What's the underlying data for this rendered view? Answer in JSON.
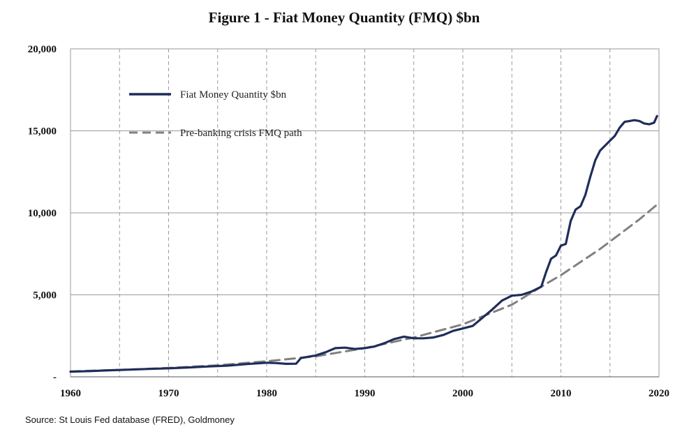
{
  "chart_data": {
    "type": "line",
    "title": "Figure 1 - Fiat Money Quantity (FMQ)  $bn",
    "xlabel": "",
    "ylabel": "",
    "xlim": [
      1960,
      2020
    ],
    "ylim": [
      0,
      20000
    ],
    "x_ticks": [
      1960,
      1970,
      1980,
      1990,
      2000,
      2010,
      2020
    ],
    "x_tick_labels": [
      "1960",
      "1970",
      "1980",
      "1990",
      "2000",
      "2010",
      "2020"
    ],
    "y_ticks": [
      0,
      5000,
      10000,
      15000,
      20000
    ],
    "y_tick_labels": [
      "-",
      "5,000",
      "10,000",
      "15,000",
      "20,000"
    ],
    "x_minor_gridlines": [
      1965,
      1975,
      1985,
      1995,
      2005,
      2015
    ],
    "grid": "horizontal solid at y ticks; vertical dashed every 5 years",
    "legend_position": "upper-left",
    "series": [
      {
        "name": "Fiat Money Quantity $bn",
        "style": "solid",
        "color": "#1f2d5a",
        "points": [
          [
            1960,
            310
          ],
          [
            1962,
            350
          ],
          [
            1964,
            400
          ],
          [
            1966,
            440
          ],
          [
            1968,
            480
          ],
          [
            1970,
            520
          ],
          [
            1972,
            570
          ],
          [
            1974,
            630
          ],
          [
            1976,
            680
          ],
          [
            1978,
            780
          ],
          [
            1980,
            860
          ],
          [
            1981,
            840
          ],
          [
            1982,
            790
          ],
          [
            1983,
            800
          ],
          [
            1983.5,
            1150
          ],
          [
            1984,
            1200
          ],
          [
            1985,
            1300
          ],
          [
            1986,
            1500
          ],
          [
            1987,
            1750
          ],
          [
            1988,
            1780
          ],
          [
            1989,
            1700
          ],
          [
            1990,
            1750
          ],
          [
            1991,
            1850
          ],
          [
            1992,
            2050
          ],
          [
            1993,
            2300
          ],
          [
            1994,
            2450
          ],
          [
            1995,
            2350
          ],
          [
            1996,
            2350
          ],
          [
            1997,
            2400
          ],
          [
            1998,
            2550
          ],
          [
            1999,
            2800
          ],
          [
            2000,
            2950
          ],
          [
            2001,
            3100
          ],
          [
            2002,
            3600
          ],
          [
            2003,
            4100
          ],
          [
            2004,
            4650
          ],
          [
            2005,
            4950
          ],
          [
            2006,
            5000
          ],
          [
            2007,
            5200
          ],
          [
            2008,
            5500
          ],
          [
            2008.5,
            6400
          ],
          [
            2009,
            7200
          ],
          [
            2009.5,
            7400
          ],
          [
            2010,
            8000
          ],
          [
            2010.5,
            8100
          ],
          [
            2011,
            9500
          ],
          [
            2011.5,
            10200
          ],
          [
            2012,
            10400
          ],
          [
            2012.5,
            11100
          ],
          [
            2013,
            12200
          ],
          [
            2013.5,
            13200
          ],
          [
            2014,
            13800
          ],
          [
            2014.5,
            14100
          ],
          [
            2015,
            14400
          ],
          [
            2015.5,
            14700
          ],
          [
            2016,
            15200
          ],
          [
            2016.5,
            15550
          ],
          [
            2017,
            15600
          ],
          [
            2017.5,
            15650
          ],
          [
            2018,
            15600
          ],
          [
            2018.5,
            15450
          ],
          [
            2019,
            15400
          ],
          [
            2019.5,
            15500
          ],
          [
            2019.8,
            15900
          ]
        ]
      },
      {
        "name": "Pre-banking crisis FMQ path",
        "style": "dashed",
        "color": "#808080",
        "points": [
          [
            1960,
            330
          ],
          [
            1965,
            420
          ],
          [
            1970,
            540
          ],
          [
            1975,
            700
          ],
          [
            1980,
            950
          ],
          [
            1985,
            1250
          ],
          [
            1990,
            1750
          ],
          [
            1995,
            2400
          ],
          [
            2000,
            3200
          ],
          [
            2005,
            4400
          ],
          [
            2008,
            5500
          ],
          [
            2010,
            6200
          ],
          [
            2012,
            7000
          ],
          [
            2014,
            7800
          ],
          [
            2016,
            8700
          ],
          [
            2018,
            9600
          ],
          [
            2019.8,
            10500
          ]
        ]
      }
    ],
    "source": "Source: St Louis Fed  database (FRED), Goldmoney"
  }
}
